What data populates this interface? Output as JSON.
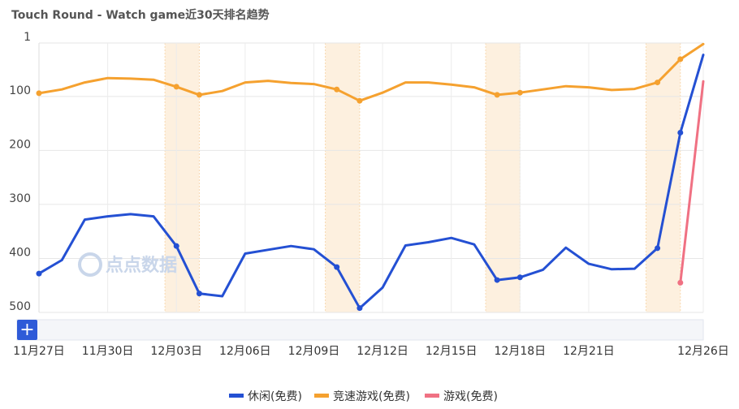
{
  "chart_data": {
    "type": "line",
    "title": "Touch Round - Watch game近30天排名趋势",
    "watermark": "点点数据",
    "zoom_label": "+",
    "y_inverted": true,
    "ylim": [
      1,
      500
    ],
    "y_ticks": [
      "1",
      "100",
      "200",
      "300",
      "400",
      "500"
    ],
    "y_tick_values": [
      1,
      100,
      200,
      300,
      400,
      500
    ],
    "x_labels": [
      "11月27日",
      "11月30日",
      "12月03日",
      "12月06日",
      "12月09日",
      "12月12日",
      "12月15日",
      "12月18日",
      "12月21日",
      "12月26日"
    ],
    "x_label_indices": [
      0,
      3,
      6,
      9,
      12,
      15,
      18,
      21,
      24,
      29
    ],
    "x": [
      "11月27日",
      "11月28日",
      "11月29日",
      "11月30日",
      "12月01日",
      "12月02日",
      "12月03日",
      "12月04日",
      "12月05日",
      "12月06日",
      "12月07日",
      "12月08日",
      "12月09日",
      "12月10日",
      "12月11日",
      "12月12日",
      "12月13日",
      "12月14日",
      "12月15日",
      "12月16日",
      "12月17日",
      "12月18日",
      "12月19日",
      "12月20日",
      "12月21日",
      "12月22日",
      "12月23日",
      "12月24日",
      "12月25日",
      "12月26日"
    ],
    "weekend_bands": [
      [
        5.5,
        7.0
      ],
      [
        12.5,
        14.0
      ],
      [
        19.5,
        21.0
      ],
      [
        26.5,
        28.0
      ]
    ],
    "grid": true,
    "legend_position": "bottom",
    "series": [
      {
        "name": "休闲(免费)",
        "color": "#2450d3",
        "values": [
          428,
          403,
          328,
          322,
          318,
          322,
          377,
          465,
          470,
          391,
          384,
          377,
          383,
          416,
          492,
          454,
          376,
          370,
          362,
          374,
          440,
          435,
          421,
          380,
          410,
          420,
          419,
          381,
          167,
          23
        ],
        "markers": [
          0,
          6,
          7,
          13,
          14,
          20,
          21,
          27,
          28
        ]
      },
      {
        "name": "竞速游戏(免费)",
        "color": "#f5a12f",
        "values": [
          94,
          87,
          74,
          66,
          67,
          69,
          82,
          97,
          90,
          74,
          71,
          75,
          77,
          87,
          108,
          93,
          74,
          74,
          78,
          83,
          97,
          93,
          87,
          81,
          83,
          88,
          86,
          74,
          31,
          3
        ],
        "markers": [
          0,
          6,
          7,
          13,
          14,
          20,
          21,
          27,
          28
        ]
      },
      {
        "name": "游戏(免费)",
        "color": "#f07183",
        "values": [
          null,
          null,
          null,
          null,
          null,
          null,
          null,
          null,
          null,
          null,
          null,
          null,
          null,
          null,
          null,
          null,
          null,
          null,
          null,
          null,
          null,
          null,
          null,
          null,
          null,
          null,
          null,
          null,
          445,
          72
        ],
        "markers": [
          28
        ]
      }
    ]
  }
}
